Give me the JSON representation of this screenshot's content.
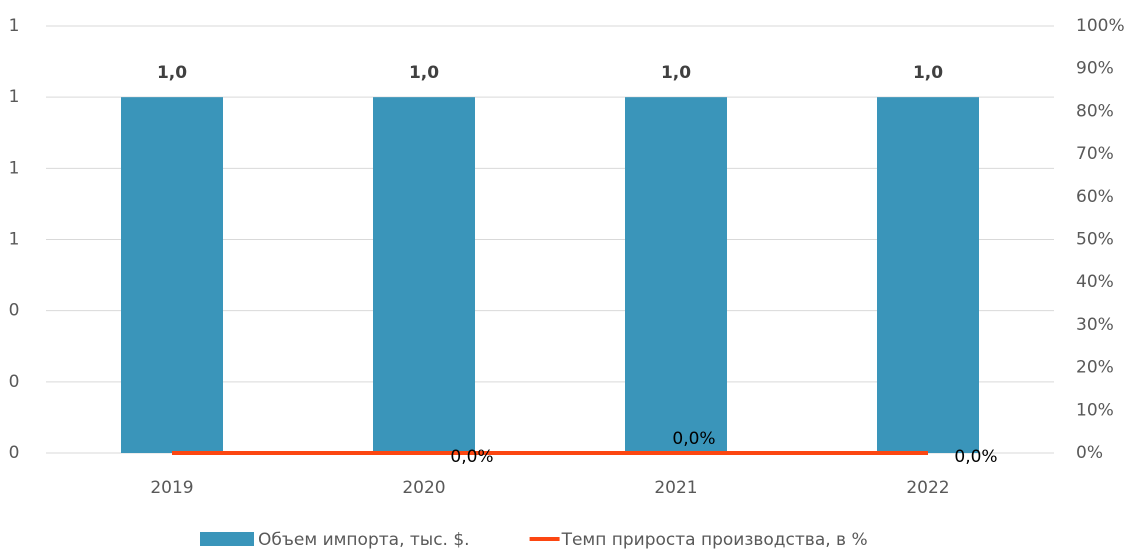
{
  "chart_data": {
    "type": "bar",
    "categories": [
      "2019",
      "2020",
      "2021",
      "2022"
    ],
    "series": [
      {
        "name": "Объем импорта, тыс. $.",
        "type": "bar",
        "color": "#3a95ba",
        "values": [
          1.0,
          1.0,
          1.0,
          1.0
        ],
        "value_labels": [
          "1,0",
          "1,0",
          "1,0",
          "1,0"
        ]
      },
      {
        "name": "Темп прироста производства, в %",
        "type": "line",
        "axis": "y2",
        "color": "#fc4611",
        "values": [
          0,
          0,
          0,
          0
        ],
        "value_labels": [
          null,
          "0,0%",
          "0,0%",
          "0,0%"
        ]
      }
    ],
    "ylim": [
      0,
      1.2
    ],
    "yticks": [
      0,
      {
        "value": 0.2,
        "label": "0"
      },
      {
        "value": 0.4,
        "label": "0"
      },
      {
        "value": 0.6,
        "label": "1"
      },
      {
        "value": 0.8,
        "label": "1"
      },
      {
        "value": 1.0,
        "label": "1"
      },
      {
        "value": 1.2,
        "label": "1"
      }
    ],
    "y2lim": [
      0,
      100
    ],
    "y2ticks": [
      {
        "value": 0,
        "label": "0%"
      },
      {
        "value": 10,
        "label": "10%"
      },
      {
        "value": 20,
        "label": "20%"
      },
      {
        "value": 30,
        "label": "30%"
      },
      {
        "value": 40,
        "label": "40%"
      },
      {
        "value": 50,
        "label": "50%"
      },
      {
        "value": 60,
        "label": "60%"
      },
      {
        "value": 70,
        "label": "70%"
      },
      {
        "value": 80,
        "label": "80%"
      },
      {
        "value": 90,
        "label": "90%"
      },
      {
        "value": 100,
        "label": "100%"
      }
    ],
    "grid": true,
    "legend": "bottom"
  }
}
